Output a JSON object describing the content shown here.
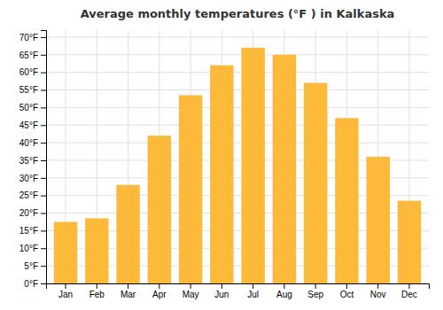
{
  "chart_data": {
    "type": "bar",
    "title": "Average monthly temperatures (°F ) in Kalkaska",
    "categories": [
      "Jan",
      "Feb",
      "Mar",
      "Apr",
      "May",
      "Jun",
      "Jul",
      "Aug",
      "Sep",
      "Oct",
      "Nov",
      "Dec"
    ],
    "values": [
      17.5,
      18.5,
      28.0,
      42.0,
      53.5,
      62.0,
      67.0,
      65.0,
      57.0,
      47.0,
      36.0,
      23.5
    ],
    "color": "#FDB93A",
    "ylim": [
      0,
      72
    ],
    "yticks": [
      {
        "value": 0,
        "label": "0°F"
      },
      {
        "value": 5,
        "label": "5°F"
      },
      {
        "value": 10,
        "label": "10°F"
      },
      {
        "value": 15,
        "label": "15°F"
      },
      {
        "value": 20,
        "label": "20°F"
      },
      {
        "value": 25,
        "label": "25°F"
      },
      {
        "value": 30,
        "label": "30°F"
      },
      {
        "value": 35,
        "label": "35°F"
      },
      {
        "value": 40,
        "label": "40°F"
      },
      {
        "value": 45,
        "label": "45°F"
      },
      {
        "value": 50,
        "label": "50°F"
      },
      {
        "value": 55,
        "label": "55°F"
      },
      {
        "value": 60,
        "label": "60°F"
      },
      {
        "value": 65,
        "label": "65°F"
      },
      {
        "value": 70,
        "label": "70°F"
      }
    ],
    "grid": true
  }
}
